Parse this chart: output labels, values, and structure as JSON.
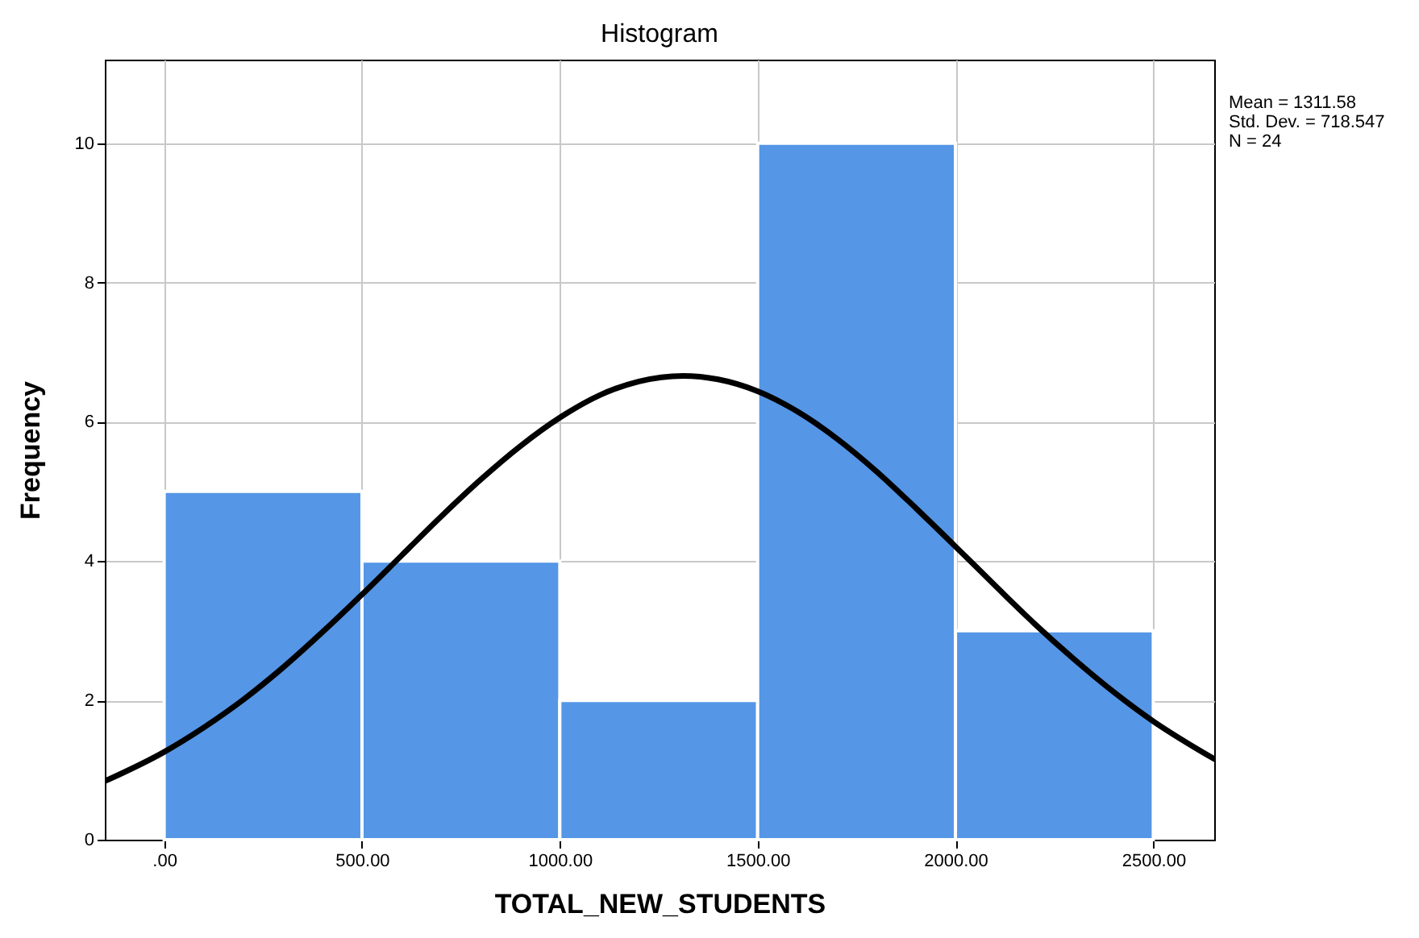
{
  "chart_data": {
    "type": "histogram",
    "title": "Histogram",
    "xlabel": "TOTAL_NEW_STUDENTS",
    "ylabel": "Frequency",
    "bins": [
      0,
      500,
      1000,
      1500,
      2000,
      2500
    ],
    "series": [
      {
        "color": "#5596e6",
        "values": [
          5,
          4,
          2,
          10,
          3
        ]
      },
      {
        "type": "line",
        "color": "#000000",
        "x": [
          -150,
          0,
          100,
          200,
          300,
          400,
          500,
          600,
          700,
          800,
          900,
          1000,
          1100,
          1200,
          1311.58,
          1400,
          1500,
          1600,
          1700,
          1800,
          1900,
          2000,
          2100,
          2200,
          2300,
          2400,
          2500,
          2600,
          2654
        ],
        "values": [
          0.84,
          1.26,
          1.61,
          2.01,
          2.47,
          2.98,
          3.52,
          4.08,
          4.64,
          5.17,
          5.65,
          6.06,
          6.38,
          6.58,
          6.66,
          6.61,
          6.44,
          6.15,
          5.76,
          5.29,
          4.76,
          4.21,
          3.65,
          3.1,
          2.59,
          2.12,
          1.7,
          1.34,
          1.16
        ]
      }
    ],
    "xlim": [
      -150,
      2654
    ],
    "ylim": [
      0,
      11.2
    ],
    "xticks": [
      {
        "value": 0,
        "label": ".00"
      },
      {
        "value": 500,
        "label": "500.00"
      },
      {
        "value": 1000,
        "label": "1000.00"
      },
      {
        "value": 1500,
        "label": "1500.00"
      },
      {
        "value": 2000,
        "label": "2000.00"
      },
      {
        "value": 2500,
        "label": "2500.00"
      }
    ],
    "yticks": [
      0,
      2,
      4,
      6,
      8,
      10
    ],
    "grid": true,
    "annotations": [
      "Mean = 1311.58",
      "Std. Dev. = 718.547",
      "N = 24"
    ]
  }
}
